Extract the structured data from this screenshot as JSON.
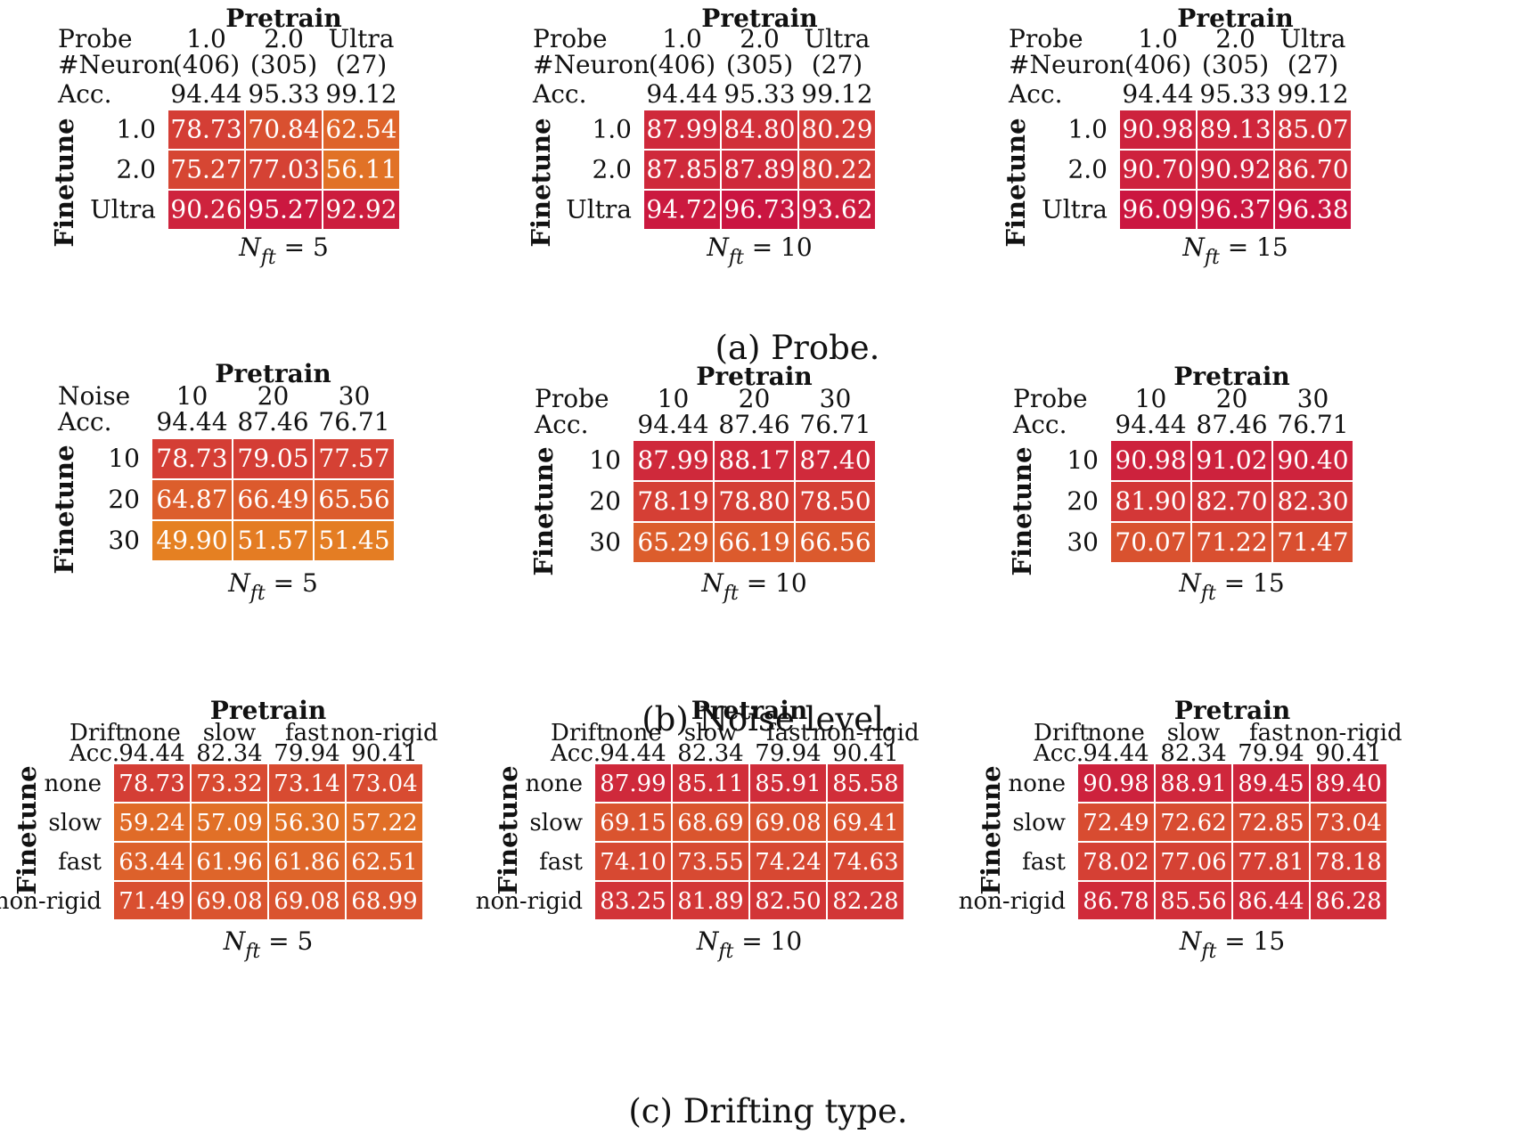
{
  "chart_data": [
    {
      "type": "heatmap",
      "title": "Pretrain",
      "ylabel": "Finetune",
      "caption": "N_ft = 5",
      "colheader_labels": [
        "Probe",
        "#Neuron",
        "Acc."
      ],
      "columns": [
        {
          "name": "1.0",
          "extra": "(406)",
          "acc": "94.44"
        },
        {
          "name": "2.0",
          "extra": "(305)",
          "acc": "95.33"
        },
        {
          "name": "Ultra",
          "extra": "(27)",
          "acc": "99.12"
        }
      ],
      "rows": [
        "1.0",
        "2.0",
        "Ultra"
      ],
      "values": [
        [
          78.73,
          70.84,
          62.54
        ],
        [
          75.27,
          77.03,
          56.11
        ],
        [
          90.26,
          95.27,
          92.92
        ]
      ]
    },
    {
      "type": "heatmap",
      "title": "Pretrain",
      "ylabel": "Finetune",
      "caption": "N_ft = 10",
      "colheader_labels": [
        "Probe",
        "#Neuron",
        "Acc."
      ],
      "columns": [
        {
          "name": "1.0",
          "extra": "(406)",
          "acc": "94.44"
        },
        {
          "name": "2.0",
          "extra": "(305)",
          "acc": "95.33"
        },
        {
          "name": "Ultra",
          "extra": "(27)",
          "acc": "99.12"
        }
      ],
      "rows": [
        "1.0",
        "2.0",
        "Ultra"
      ],
      "values": [
        [
          87.99,
          84.8,
          80.29
        ],
        [
          87.85,
          87.89,
          80.22
        ],
        [
          94.72,
          96.73,
          93.62
        ]
      ]
    },
    {
      "type": "heatmap",
      "title": "Pretrain",
      "ylabel": "Finetune",
      "caption": "N_ft = 15",
      "colheader_labels": [
        "Probe",
        "#Neuron",
        "Acc."
      ],
      "columns": [
        {
          "name": "1.0",
          "extra": "(406)",
          "acc": "94.44"
        },
        {
          "name": "2.0",
          "extra": "(305)",
          "acc": "95.33"
        },
        {
          "name": "Ultra",
          "extra": "(27)",
          "acc": "99.12"
        }
      ],
      "rows": [
        "1.0",
        "2.0",
        "Ultra"
      ],
      "values": [
        [
          90.98,
          89.13,
          85.07
        ],
        [
          90.7,
          90.92,
          86.7
        ],
        [
          96.09,
          96.37,
          96.38
        ]
      ]
    },
    {
      "type": "heatmap",
      "title": "Pretrain",
      "ylabel": "Finetune",
      "caption": "N_ft = 5",
      "colheader_labels": [
        "Noise",
        "Acc."
      ],
      "columns": [
        {
          "name": "10",
          "acc": "94.44"
        },
        {
          "name": "20",
          "acc": "87.46"
        },
        {
          "name": "30",
          "acc": "76.71"
        }
      ],
      "rows": [
        "10",
        "20",
        "30"
      ],
      "values": [
        [
          78.73,
          79.05,
          77.57
        ],
        [
          64.87,
          66.49,
          65.56
        ],
        [
          49.9,
          51.57,
          51.45
        ]
      ]
    },
    {
      "type": "heatmap",
      "title": "Pretrain",
      "ylabel": "Finetune",
      "caption": "N_ft = 10",
      "colheader_labels": [
        "Probe",
        "Acc."
      ],
      "columns": [
        {
          "name": "10",
          "acc": "94.44"
        },
        {
          "name": "20",
          "acc": "87.46"
        },
        {
          "name": "30",
          "acc": "76.71"
        }
      ],
      "rows": [
        "10",
        "20",
        "30"
      ],
      "values": [
        [
          87.99,
          88.17,
          87.4
        ],
        [
          78.19,
          78.8,
          78.5
        ],
        [
          65.29,
          66.19,
          66.56
        ]
      ]
    },
    {
      "type": "heatmap",
      "title": "Pretrain",
      "ylabel": "Finetune",
      "caption": "N_ft = 15",
      "colheader_labels": [
        "Probe",
        "Acc."
      ],
      "columns": [
        {
          "name": "10",
          "acc": "94.44"
        },
        {
          "name": "20",
          "acc": "87.46"
        },
        {
          "name": "30",
          "acc": "76.71"
        }
      ],
      "rows": [
        "10",
        "20",
        "30"
      ],
      "values": [
        [
          90.98,
          91.02,
          90.4
        ],
        [
          81.9,
          82.7,
          82.3
        ],
        [
          70.07,
          71.22,
          71.47
        ]
      ]
    },
    {
      "type": "heatmap",
      "title": "Pretrain",
      "ylabel": "Finetune",
      "caption": "N_ft = 5",
      "colheader_labels": [
        "Drift",
        "Acc."
      ],
      "columns": [
        {
          "name": "none",
          "acc": "94.44"
        },
        {
          "name": "slow",
          "acc": "82.34"
        },
        {
          "name": "fast",
          "acc": "79.94"
        },
        {
          "name": "non-rigid",
          "acc": "90.41"
        }
      ],
      "rows": [
        "none",
        "slow",
        "fast",
        "non-rigid"
      ],
      "values": [
        [
          78.73,
          73.32,
          73.14,
          73.04
        ],
        [
          59.24,
          57.09,
          56.3,
          57.22
        ],
        [
          63.44,
          61.96,
          61.86,
          62.51
        ],
        [
          71.49,
          69.08,
          69.08,
          68.99
        ]
      ]
    },
    {
      "type": "heatmap",
      "title": "Pretrain",
      "ylabel": "Finetune",
      "caption": "N_ft = 10",
      "colheader_labels": [
        "Drift",
        "Acc."
      ],
      "columns": [
        {
          "name": "none",
          "acc": "94.44"
        },
        {
          "name": "slow",
          "acc": "82.34"
        },
        {
          "name": "fast",
          "acc": "79.94"
        },
        {
          "name": "non-rigid",
          "acc": "90.41"
        }
      ],
      "rows": [
        "none",
        "slow",
        "fast",
        "non-rigid"
      ],
      "values": [
        [
          87.99,
          85.11,
          85.91,
          85.58
        ],
        [
          69.15,
          68.69,
          69.08,
          69.41
        ],
        [
          74.1,
          73.55,
          74.24,
          74.63
        ],
        [
          83.25,
          81.89,
          82.5,
          82.28
        ]
      ]
    },
    {
      "type": "heatmap",
      "title": "Pretrain",
      "ylabel": "Finetune",
      "caption": "N_ft = 15",
      "colheader_labels": [
        "Drift",
        "Acc."
      ],
      "columns": [
        {
          "name": "none",
          "acc": "94.44"
        },
        {
          "name": "slow",
          "acc": "82.34"
        },
        {
          "name": "fast",
          "acc": "79.94"
        },
        {
          "name": "non-rigid",
          "acc": "90.41"
        }
      ],
      "rows": [
        "none",
        "slow",
        "fast",
        "non-rigid"
      ],
      "values": [
        [
          90.98,
          88.91,
          89.45,
          89.4
        ],
        [
          72.49,
          72.62,
          72.85,
          73.04
        ],
        [
          78.02,
          77.06,
          77.81,
          78.18
        ],
        [
          86.78,
          85.56,
          86.44,
          86.28
        ]
      ]
    }
  ],
  "captions": [
    "(a) Probe.",
    "(b) Noise level.",
    "(c) Drifting type."
  ]
}
